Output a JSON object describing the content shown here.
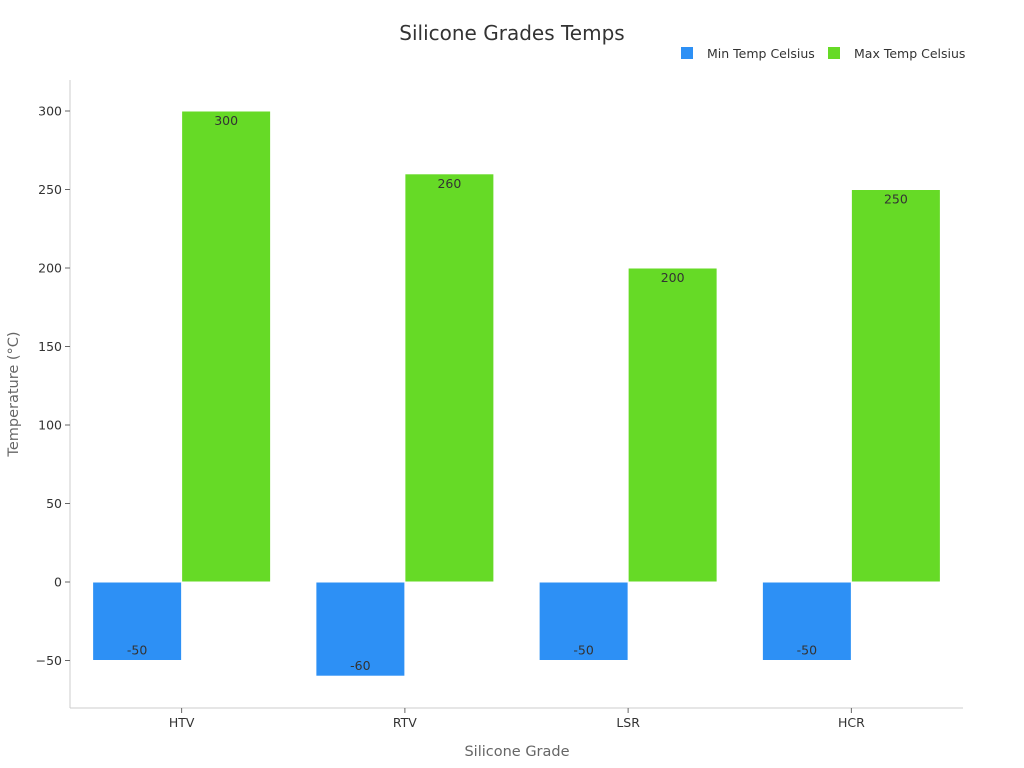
{
  "chart_data": {
    "type": "bar",
    "title": "Silicone Grades Temps",
    "xlabel": "Silicone Grade",
    "ylabel": "Temperature (°C)",
    "categories": [
      "HTV",
      "RTV",
      "LSR",
      "HCR"
    ],
    "series": [
      {
        "name": "Min Temp Celsius",
        "values": [
          -50,
          -60,
          -50,
          -50
        ],
        "color": "#2d90f5"
      },
      {
        "name": "Max Temp Celsius",
        "values": [
          300,
          260,
          200,
          250
        ],
        "color": "#66da26"
      }
    ],
    "ylim": [
      -80,
      320
    ],
    "yticks": [
      -50,
      0,
      50,
      100,
      150,
      200,
      250,
      300
    ],
    "grid": false,
    "legend_position": "top-right",
    "data_labels": true
  }
}
